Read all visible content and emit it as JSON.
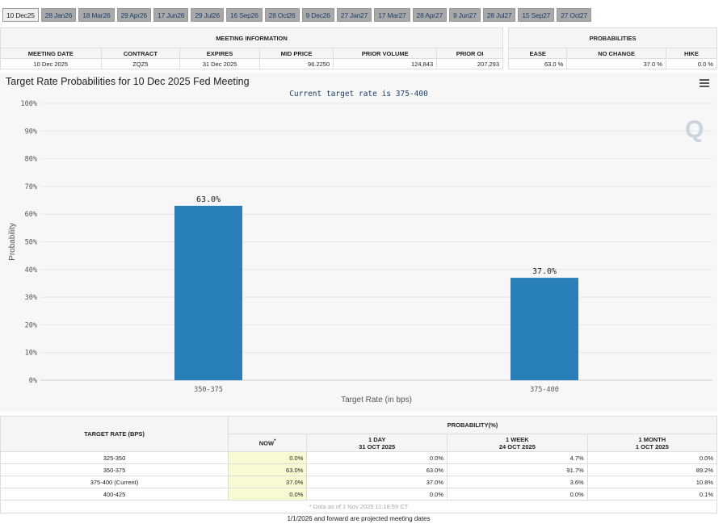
{
  "tabs": [
    "10 Dec25",
    "28 Jan26",
    "18 Mar26",
    "29 Apr26",
    "17 Jun26",
    "29 Jul26",
    "16 Sep26",
    "28 Oct26",
    "9 Dec26",
    "27 Jan27",
    "17 Mar27",
    "28 Apr27",
    "9 Jun27",
    "28 Jul27",
    "15 Sep27",
    "27 Oct27"
  ],
  "meeting": {
    "title": "MEETING INFORMATION",
    "headers": [
      "MEETING DATE",
      "CONTRACT",
      "EXPIRES",
      "MID PRICE",
      "PRIOR VOLUME",
      "PRIOR OI"
    ],
    "values": [
      "10 Dec 2025",
      "ZQZ5",
      "31 Dec 2025",
      "96.2250",
      "124,843",
      "207,293"
    ]
  },
  "probabilities": {
    "title": "PROBABILITIES",
    "headers": [
      "EASE",
      "NO CHANGE",
      "HIKE"
    ],
    "values": [
      "63.0 %",
      "37.0 %",
      "0.0 %"
    ]
  },
  "chart_title": "Target Rate Probabilities for 10 Dec 2025 Fed Meeting",
  "chart_data": {
    "type": "bar",
    "subtitle": "Current target rate is 375-400",
    "categories": [
      "350-375",
      "375-400"
    ],
    "values": [
      63.0,
      37.0
    ],
    "data_labels": [
      "63.0%",
      "37.0%"
    ],
    "xlabel": "Target Rate (in bps)",
    "ylabel": "Probability",
    "ylim": [
      0,
      100
    ],
    "yticks": [
      "0%",
      "10%",
      "20%",
      "30%",
      "40%",
      "50%",
      "60%",
      "70%",
      "80%",
      "90%",
      "100%"
    ],
    "bar_color": "#2980b9",
    "grid": true
  },
  "history": {
    "col_header": "TARGET RATE (BPS)",
    "group_header": "PROBABILITY(%)",
    "cols": [
      {
        "l1": "NOW",
        "l2": ""
      },
      {
        "l1": "1 DAY",
        "l2": "31 OCT 2025"
      },
      {
        "l1": "1 WEEK",
        "l2": "24 OCT 2025"
      },
      {
        "l1": "1 MONTH",
        "l2": "1 OCT 2025"
      }
    ],
    "now_marker": "*",
    "rows": [
      {
        "rate": "325-350",
        "v": [
          "0.0%",
          "0.0%",
          "4.7%",
          "0.0%"
        ]
      },
      {
        "rate": "350-375",
        "v": [
          "63.0%",
          "63.0%",
          "91.7%",
          "89.2%"
        ]
      },
      {
        "rate": "375-400 (Current)",
        "v": [
          "37.0%",
          "37.0%",
          "3.6%",
          "10.8%"
        ]
      },
      {
        "rate": "400-425",
        "v": [
          "0.0%",
          "0.0%",
          "0.0%",
          "0.1%"
        ]
      }
    ],
    "note": "* Data as of 1 Nov 2025 11:19:59 CT"
  },
  "footer": "1/1/2026 and forward are projected meeting dates"
}
